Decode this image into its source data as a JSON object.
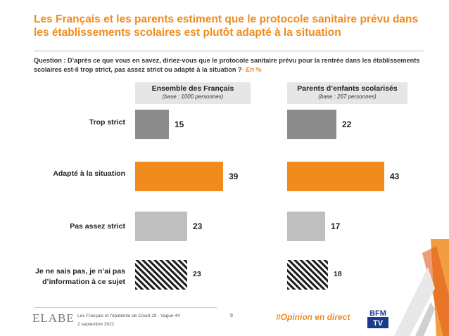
{
  "title": "Les Français et les parents estiment que le protocole sanitaire prévu dans les établissements scolaires est plutôt adapté à la situation",
  "question": {
    "text": "Question : D’après ce que vous en savez, diriez-vous que le protocole sanitaire prévu pour la rentrée dans les établissements scolaires est-il trop strict, pas assez strict ou adapté à la situation ?",
    "accent": "- En %"
  },
  "panels": [
    {
      "title": "Ensemble des Français",
      "base": "(base : 1000 personnes)"
    },
    {
      "title": "Parents d’enfants scolarisés",
      "base": "(base : 267 personnes)"
    }
  ],
  "footer": {
    "logo": "ELABE",
    "source": "Les Français et l’épidémie de Covid-19 - Vague 44",
    "date": "2 septembre 2021",
    "page": "9",
    "hashtag": "#Opinion en direct",
    "partner": "BFM TV"
  },
  "colors": {
    "accent": "#f08c1e",
    "dark_gray": "#8c8c8c",
    "light_gray": "#bfbfbf",
    "hatch": "#222222"
  },
  "chart_data": {
    "type": "bar",
    "orientation": "horizontal",
    "categories": [
      "Trop strict",
      "Adapté à la situation",
      "Pas assez strict",
      "Je ne sais pas, je n’ai pas d’information à ce sujet"
    ],
    "series": [
      {
        "name": "Ensemble des Français",
        "values": [
          15,
          39,
          23,
          23
        ]
      },
      {
        "name": "Parents d’enfants scolarisés",
        "values": [
          22,
          43,
          17,
          18
        ]
      }
    ],
    "bar_styles": [
      "dark_gray",
      "accent",
      "light_gray",
      "hatch"
    ],
    "xlim": [
      0,
      50
    ],
    "unit": "%"
  }
}
